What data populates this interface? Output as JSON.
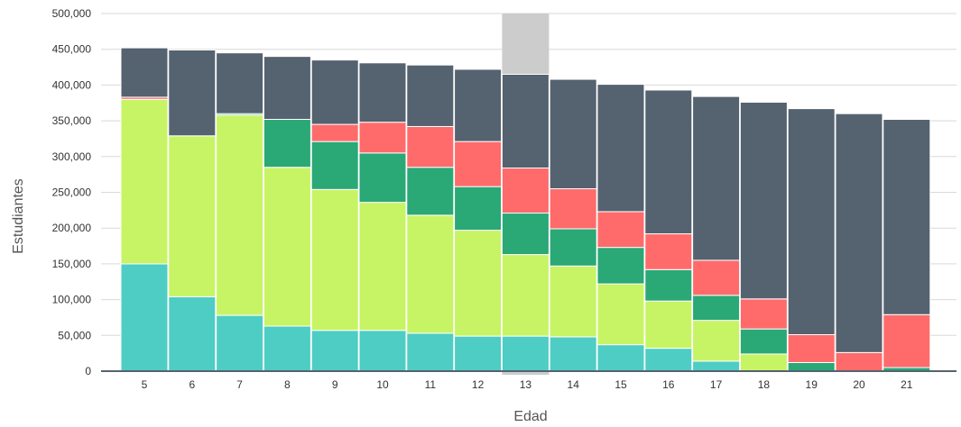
{
  "chart_data": {
    "type": "bar",
    "stacked": true,
    "xlabel": "Edad",
    "ylabel": "Estudiantes",
    "ylim": [
      0,
      500000
    ],
    "yticks": [
      "0",
      "50,000",
      "100,000",
      "150,000",
      "200,000",
      "250,000",
      "300,000",
      "350,000",
      "400,000",
      "450,000",
      "500,000"
    ],
    "grid": true,
    "highlighted_category": "13",
    "categories": [
      "5",
      "6",
      "7",
      "8",
      "9",
      "10",
      "11",
      "12",
      "13",
      "14",
      "15",
      "16",
      "17",
      "18",
      "19",
      "20",
      "21"
    ],
    "series": [
      {
        "color": "#4ecdc4",
        "values": [
          150000,
          104000,
          78000,
          63000,
          57000,
          57000,
          53000,
          49000,
          49000,
          48000,
          37000,
          32000,
          14000,
          0,
          0,
          0,
          0
        ]
      },
      {
        "color": "#c7f464",
        "values": [
          230000,
          225000,
          280000,
          222000,
          197000,
          179000,
          165000,
          148000,
          114000,
          99000,
          85000,
          66000,
          57000,
          24000,
          0,
          0,
          0
        ]
      },
      {
        "color": "#2aa876",
        "values": [
          0,
          0,
          2000,
          67000,
          67000,
          69000,
          67000,
          61000,
          58000,
          52000,
          51000,
          44000,
          35000,
          35000,
          12000,
          0,
          5000
        ]
      },
      {
        "color": "#ff6b6b",
        "values": [
          3000,
          0,
          0,
          0,
          24000,
          43000,
          57000,
          63000,
          63000,
          56000,
          50000,
          50000,
          49000,
          42000,
          39000,
          26000,
          74000
        ]
      },
      {
        "color": "#556270",
        "values": [
          69000,
          120000,
          85000,
          88000,
          90000,
          83000,
          86000,
          101000,
          131000,
          153000,
          178000,
          201000,
          229000,
          275000,
          316000,
          334000,
          273000
        ]
      }
    ]
  }
}
